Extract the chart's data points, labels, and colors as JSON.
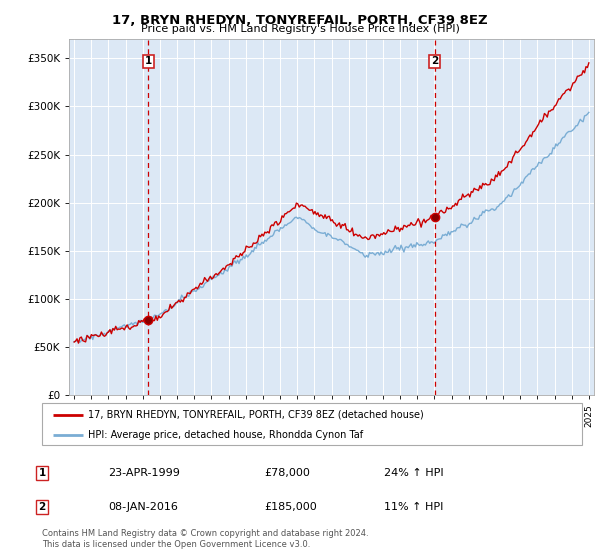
{
  "title": "17, BRYN RHEDYN, TONYREFAIL, PORTH, CF39 8EZ",
  "subtitle": "Price paid vs. HM Land Registry's House Price Index (HPI)",
  "red_label": "17, BRYN RHEDYN, TONYREFAIL, PORTH, CF39 8EZ (detached house)",
  "blue_label": "HPI: Average price, detached house, Rhondda Cynon Taf",
  "transaction1_date": "23-APR-1999",
  "transaction1_price": "£78,000",
  "transaction1_hpi": "24% ↑ HPI",
  "transaction2_date": "08-JAN-2016",
  "transaction2_price": "£185,000",
  "transaction2_hpi": "11% ↑ HPI",
  "footer": "Contains HM Land Registry data © Crown copyright and database right 2024.\nThis data is licensed under the Open Government Licence v3.0.",
  "ylim": [
    0,
    370000
  ],
  "yticks": [
    0,
    50000,
    100000,
    150000,
    200000,
    250000,
    300000,
    350000
  ],
  "background_color": "#ffffff",
  "plot_bg_color": "#dce8f5",
  "grid_color": "#ffffff",
  "red_color": "#cc0000",
  "blue_color": "#7aadd4",
  "vline_color": "#cc0000",
  "marker1_x": 1999.31,
  "marker1_y": 78000,
  "marker2_x": 2016.03,
  "marker2_y": 185000,
  "vline1_x": 1999.31,
  "vline2_x": 2016.03,
  "xlim_left": 1994.7,
  "xlim_right": 2025.3
}
